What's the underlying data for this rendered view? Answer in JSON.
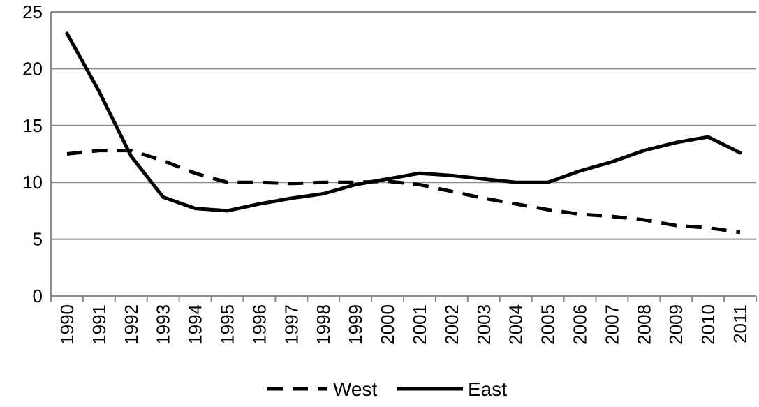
{
  "chart_data": {
    "type": "line",
    "title": "",
    "xlabel": "",
    "ylabel": "",
    "ylim": [
      0,
      25
    ],
    "yticks": [
      "0",
      "5",
      "10",
      "15",
      "20",
      "25"
    ],
    "categories": [
      "1990",
      "1991",
      "1992",
      "1993",
      "1994",
      "1995",
      "1996",
      "1997",
      "1998",
      "1999",
      "2000",
      "2001",
      "2002",
      "2003",
      "2004",
      "2005",
      "2006",
      "2007",
      "2008",
      "2009",
      "2010",
      "2011"
    ],
    "grid": "horizontal",
    "legend_position": "bottom",
    "series": [
      {
        "name": "West",
        "style": "dashed",
        "color": "#000000",
        "values": [
          12.5,
          12.8,
          12.8,
          11.9,
          10.8,
          10.0,
          10.0,
          9.9,
          10.0,
          10.0,
          10.1,
          9.8,
          9.2,
          8.6,
          8.1,
          7.6,
          7.2,
          7.0,
          6.7,
          6.2,
          6.0,
          5.6
        ]
      },
      {
        "name": "East",
        "style": "solid",
        "color": "#000000",
        "values": [
          23.1,
          18.0,
          12.3,
          8.7,
          7.7,
          7.5,
          8.1,
          8.6,
          9.0,
          9.8,
          10.3,
          10.8,
          10.6,
          10.3,
          10.0,
          10.0,
          11.0,
          11.8,
          12.8,
          13.5,
          14.0,
          12.6
        ]
      }
    ]
  },
  "style": {
    "grid_color": "#8c8c8c",
    "axis_color": "#8c8c8c",
    "line_color": "#000000"
  }
}
